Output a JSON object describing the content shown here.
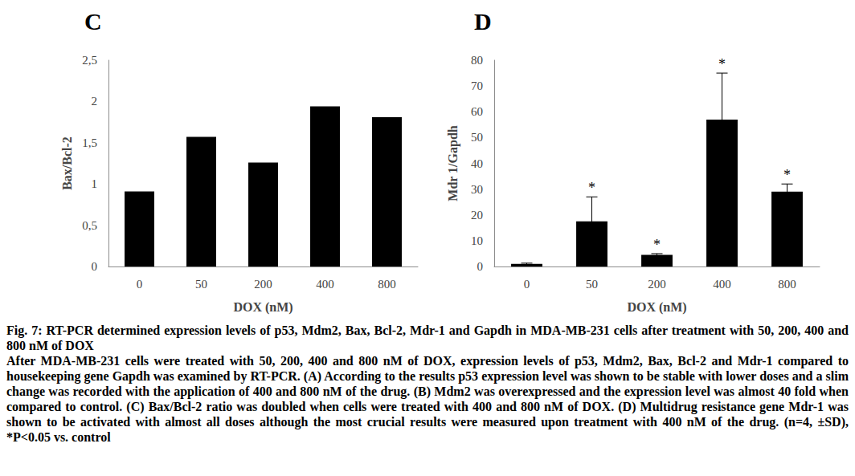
{
  "chart_data": [
    {
      "type": "bar",
      "title": "C",
      "categories": [
        "0",
        "50",
        "200",
        "400",
        "800"
      ],
      "values": [
        0.91,
        1.57,
        1.26,
        1.94,
        1.81
      ],
      "color": "#000000",
      "x_label": "DOX (nM)",
      "y_label": "Bax/Bcl-2",
      "ylim": [
        0,
        2.5
      ],
      "yticks": [
        0,
        {
          "value": 0.5,
          "label": "0,5"
        },
        1,
        {
          "value": 1.5,
          "label": "1,5"
        },
        2,
        {
          "value": 2.5,
          "label": "2,5"
        }
      ],
      "grid": false
    },
    {
      "type": "bar",
      "title": "D",
      "categories": [
        "0",
        "50",
        "200",
        "400",
        "800"
      ],
      "values": [
        1,
        17.5,
        4.5,
        57,
        29
      ],
      "errors": [
        0.3,
        9.5,
        0.5,
        18,
        3
      ],
      "color": "#000000",
      "annotations": [
        {
          "category": "50",
          "text": "*"
        },
        {
          "category": "200",
          "text": "*"
        },
        {
          "category": "400",
          "text": "*"
        },
        {
          "category": "800",
          "text": "*"
        }
      ],
      "x_label": "DOX (nM)",
      "y_label": "Mdr 1/Gapdh",
      "ylim": [
        0,
        80
      ],
      "yticks": [
        0,
        10,
        20,
        30,
        40,
        50,
        60,
        70,
        80
      ],
      "grid": false
    }
  ],
  "caption": {
    "title": "Fig. 7: RT-PCR determined expression levels of p53, Mdm2, Bax, Bcl-2, Mdr-1 and Gapdh in MDA-MB-231 cells after treatment with 50, 200, 400 and 800 nM of DOX",
    "text": "After MDA-MB-231 cells were treated with 50, 200, 400 and 800 nM of DOX, expression levels of p53, Mdm2, Bax, Bcl-2 and Mdr-1 compared to housekeeping gene Gapdh was examined by RT-PCR. (A) According to the results p53 expression level was shown to be stable with lower doses and a slim change was recorded with the application of 400 and 800 nM of the drug. (B) Mdm2 was overexpressed and the expression level was almost 40 fold when compared to control. (C) Bax/Bcl-2 ratio was doubled when cells were treated with 400 and 800 nM of DOX. (D) Multidrug resistance gene Mdr-1 was shown to be activated with almost all doses although the most crucial results were measured upon treatment with 400 nM of the drug. (n=4, ±SD), *P<0.05 vs. control"
  }
}
